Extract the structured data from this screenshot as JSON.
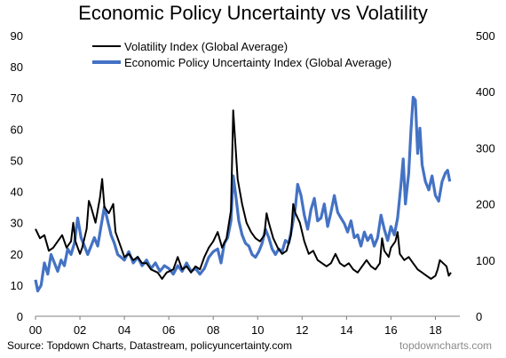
{
  "chart_data": {
    "type": "line",
    "title": "Economic Policy Uncertainty vs Volatility",
    "source": "Source: Topdown Charts, Datastream, policyuncertainty.com",
    "brand": "topdowncharts.com",
    "x_range": [
      2000,
      2019.1
    ],
    "x_ticks": [
      {
        "value": 2000,
        "label": "00"
      },
      {
        "value": 2002,
        "label": "02"
      },
      {
        "value": 2004,
        "label": "04"
      },
      {
        "value": 2006,
        "label": "06"
      },
      {
        "value": 2008,
        "label": "08"
      },
      {
        "value": 2010,
        "label": "10"
      },
      {
        "value": 2012,
        "label": "12"
      },
      {
        "value": 2014,
        "label": "14"
      },
      {
        "value": 2016,
        "label": "16"
      },
      {
        "value": 2018,
        "label": "18"
      }
    ],
    "y_left": {
      "range": [
        0,
        90
      ],
      "ticks": [
        "0",
        "10",
        "20",
        "30",
        "40",
        "50",
        "60",
        "70",
        "80",
        "90"
      ]
    },
    "y_right": {
      "range": [
        0,
        500
      ],
      "ticks": [
        "0",
        "100",
        "200",
        "300",
        "400",
        "500"
      ]
    },
    "grid": false,
    "legend_position": "top",
    "series": [
      {
        "name": "Volatility Index (Global Average)",
        "axis": "left",
        "color": "#000000",
        "points": [
          [
            2000.0,
            28
          ],
          [
            2000.2,
            25
          ],
          [
            2000.4,
            26
          ],
          [
            2000.6,
            21
          ],
          [
            2000.8,
            22
          ],
          [
            2001.0,
            24
          ],
          [
            2001.2,
            26
          ],
          [
            2001.4,
            22
          ],
          [
            2001.6,
            24
          ],
          [
            2001.7,
            30
          ],
          [
            2001.8,
            24
          ],
          [
            2002.0,
            20
          ],
          [
            2002.1,
            22
          ],
          [
            2002.3,
            28
          ],
          [
            2002.4,
            37
          ],
          [
            2002.5,
            35
          ],
          [
            2002.7,
            30
          ],
          [
            2002.9,
            38
          ],
          [
            2003.0,
            44
          ],
          [
            2003.1,
            35
          ],
          [
            2003.3,
            33
          ],
          [
            2003.5,
            36
          ],
          [
            2003.6,
            27
          ],
          [
            2003.8,
            23
          ],
          [
            2004.0,
            19
          ],
          [
            2004.2,
            20
          ],
          [
            2004.4,
            18
          ],
          [
            2004.6,
            19
          ],
          [
            2004.8,
            17
          ],
          [
            2005.0,
            17
          ],
          [
            2005.2,
            15
          ],
          [
            2005.5,
            14
          ],
          [
            2005.7,
            12
          ],
          [
            2005.9,
            14
          ],
          [
            2006.2,
            15
          ],
          [
            2006.4,
            19
          ],
          [
            2006.6,
            15
          ],
          [
            2006.8,
            16
          ],
          [
            2007.0,
            14
          ],
          [
            2007.2,
            16
          ],
          [
            2007.4,
            15
          ],
          [
            2007.6,
            19
          ],
          [
            2007.8,
            22
          ],
          [
            2008.0,
            24
          ],
          [
            2008.2,
            27
          ],
          [
            2008.4,
            22
          ],
          [
            2008.6,
            25
          ],
          [
            2008.8,
            34
          ],
          [
            2008.9,
            66
          ],
          [
            2009.0,
            55
          ],
          [
            2009.1,
            44
          ],
          [
            2009.3,
            36
          ],
          [
            2009.5,
            30
          ],
          [
            2009.7,
            27
          ],
          [
            2009.9,
            25
          ],
          [
            2010.1,
            24
          ],
          [
            2010.3,
            26
          ],
          [
            2010.4,
            33
          ],
          [
            2010.5,
            30
          ],
          [
            2010.7,
            25
          ],
          [
            2010.9,
            22
          ],
          [
            2011.1,
            20
          ],
          [
            2011.3,
            21
          ],
          [
            2011.5,
            26
          ],
          [
            2011.6,
            36
          ],
          [
            2011.7,
            33
          ],
          [
            2011.9,
            30
          ],
          [
            2012.1,
            24
          ],
          [
            2012.3,
            20
          ],
          [
            2012.5,
            21
          ],
          [
            2012.7,
            18
          ],
          [
            2012.9,
            17
          ],
          [
            2013.1,
            16
          ],
          [
            2013.3,
            17
          ],
          [
            2013.5,
            20
          ],
          [
            2013.7,
            17
          ],
          [
            2013.9,
            16
          ],
          [
            2014.1,
            17
          ],
          [
            2014.3,
            15
          ],
          [
            2014.5,
            14
          ],
          [
            2014.7,
            16
          ],
          [
            2014.9,
            18
          ],
          [
            2015.1,
            16
          ],
          [
            2015.3,
            15
          ],
          [
            2015.5,
            17
          ],
          [
            2015.6,
            25
          ],
          [
            2015.7,
            21
          ],
          [
            2015.9,
            19
          ],
          [
            2016.0,
            22
          ],
          [
            2016.2,
            24
          ],
          [
            2016.3,
            27
          ],
          [
            2016.4,
            20
          ],
          [
            2016.6,
            18
          ],
          [
            2016.8,
            19
          ],
          [
            2017.0,
            17
          ],
          [
            2017.2,
            15
          ],
          [
            2017.4,
            14
          ],
          [
            2017.6,
            13
          ],
          [
            2017.8,
            12
          ],
          [
            2018.0,
            13
          ],
          [
            2018.1,
            15
          ],
          [
            2018.2,
            18
          ],
          [
            2018.35,
            17
          ],
          [
            2018.5,
            16
          ],
          [
            2018.6,
            13
          ],
          [
            2018.7,
            14
          ]
        ]
      },
      {
        "name": "Economic Policy Uncertainty Index (Global Average)",
        "axis": "right",
        "color": "#4472C4",
        "points": [
          [
            2000.0,
            65
          ],
          [
            2000.1,
            45
          ],
          [
            2000.25,
            55
          ],
          [
            2000.4,
            95
          ],
          [
            2000.55,
            75
          ],
          [
            2000.7,
            110
          ],
          [
            2000.85,
            95
          ],
          [
            2001.0,
            80
          ],
          [
            2001.15,
            100
          ],
          [
            2001.3,
            90
          ],
          [
            2001.45,
            120
          ],
          [
            2001.6,
            110
          ],
          [
            2001.75,
            130
          ],
          [
            2001.9,
            175
          ],
          [
            2002.05,
            140
          ],
          [
            2002.2,
            125
          ],
          [
            2002.35,
            110
          ],
          [
            2002.5,
            125
          ],
          [
            2002.65,
            140
          ],
          [
            2002.8,
            125
          ],
          [
            2002.95,
            160
          ],
          [
            2003.1,
            195
          ],
          [
            2003.25,
            170
          ],
          [
            2003.4,
            145
          ],
          [
            2003.55,
            130
          ],
          [
            2003.7,
            110
          ],
          [
            2003.85,
            105
          ],
          [
            2004.0,
            100
          ],
          [
            2004.2,
            115
          ],
          [
            2004.4,
            95
          ],
          [
            2004.6,
            105
          ],
          [
            2004.8,
            90
          ],
          [
            2005.0,
            100
          ],
          [
            2005.2,
            85
          ],
          [
            2005.4,
            95
          ],
          [
            2005.6,
            80
          ],
          [
            2005.8,
            90
          ],
          [
            2006.0,
            85
          ],
          [
            2006.2,
            75
          ],
          [
            2006.4,
            90
          ],
          [
            2006.6,
            80
          ],
          [
            2006.8,
            95
          ],
          [
            2007.0,
            80
          ],
          [
            2007.2,
            85
          ],
          [
            2007.4,
            75
          ],
          [
            2007.6,
            85
          ],
          [
            2007.8,
            105
          ],
          [
            2008.0,
            115
          ],
          [
            2008.2,
            120
          ],
          [
            2008.35,
            95
          ],
          [
            2008.5,
            130
          ],
          [
            2008.65,
            140
          ],
          [
            2008.8,
            170
          ],
          [
            2008.9,
            250
          ],
          [
            2009.0,
            220
          ],
          [
            2009.15,
            170
          ],
          [
            2009.3,
            145
          ],
          [
            2009.45,
            130
          ],
          [
            2009.6,
            125
          ],
          [
            2009.75,
            110
          ],
          [
            2009.9,
            105
          ],
          [
            2010.05,
            115
          ],
          [
            2010.2,
            130
          ],
          [
            2010.35,
            155
          ],
          [
            2010.5,
            140
          ],
          [
            2010.65,
            120
          ],
          [
            2010.8,
            110
          ],
          [
            2010.95,
            120
          ],
          [
            2011.1,
            115
          ],
          [
            2011.25,
            135
          ],
          [
            2011.4,
            130
          ],
          [
            2011.55,
            160
          ],
          [
            2011.7,
            195
          ],
          [
            2011.8,
            235
          ],
          [
            2011.95,
            215
          ],
          [
            2012.1,
            180
          ],
          [
            2012.25,
            155
          ],
          [
            2012.4,
            190
          ],
          [
            2012.55,
            210
          ],
          [
            2012.7,
            170
          ],
          [
            2012.85,
            175
          ],
          [
            2013.0,
            200
          ],
          [
            2013.15,
            160
          ],
          [
            2013.3,
            185
          ],
          [
            2013.45,
            215
          ],
          [
            2013.6,
            185
          ],
          [
            2013.75,
            175
          ],
          [
            2013.9,
            165
          ],
          [
            2014.05,
            150
          ],
          [
            2014.2,
            170
          ],
          [
            2014.35,
            140
          ],
          [
            2014.5,
            145
          ],
          [
            2014.65,
            125
          ],
          [
            2014.8,
            150
          ],
          [
            2014.95,
            135
          ],
          [
            2015.1,
            145
          ],
          [
            2015.25,
            125
          ],
          [
            2015.4,
            140
          ],
          [
            2015.55,
            180
          ],
          [
            2015.7,
            155
          ],
          [
            2015.85,
            135
          ],
          [
            2016.0,
            160
          ],
          [
            2016.15,
            145
          ],
          [
            2016.3,
            175
          ],
          [
            2016.45,
            235
          ],
          [
            2016.55,
            280
          ],
          [
            2016.65,
            200
          ],
          [
            2016.8,
            255
          ],
          [
            2016.9,
            330
          ],
          [
            2017.0,
            390
          ],
          [
            2017.1,
            385
          ],
          [
            2017.2,
            290
          ],
          [
            2017.3,
            335
          ],
          [
            2017.4,
            270
          ],
          [
            2017.55,
            240
          ],
          [
            2017.7,
            225
          ],
          [
            2017.85,
            250
          ],
          [
            2018.0,
            215
          ],
          [
            2018.15,
            205
          ],
          [
            2018.3,
            240
          ],
          [
            2018.45,
            255
          ],
          [
            2018.55,
            260
          ],
          [
            2018.65,
            240
          ]
        ]
      }
    ]
  }
}
